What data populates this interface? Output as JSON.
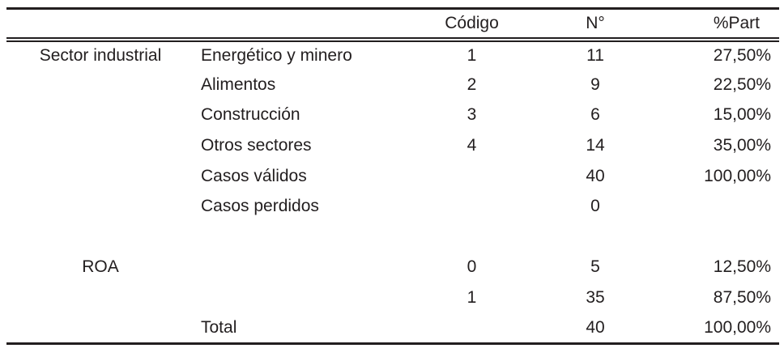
{
  "table": {
    "headers": {
      "group": "",
      "label": "",
      "codigo": "Código",
      "n": "N°",
      "part": "%Part"
    },
    "rows": [
      {
        "group": "Sector industrial",
        "label": "Energético y minero",
        "codigo": "1",
        "n": "11",
        "part": "27,50%"
      },
      {
        "group": "",
        "label": "Alimentos",
        "codigo": "2",
        "n": "9",
        "part": "22,50%"
      },
      {
        "group": "",
        "label": "Construcción",
        "codigo": "3",
        "n": "6",
        "part": "15,00%"
      },
      {
        "group": "",
        "label": "Otros sectores",
        "codigo": "4",
        "n": "14",
        "part": "35,00%"
      },
      {
        "group": "",
        "label": "Casos válidos",
        "codigo": "",
        "n": "40",
        "part": "100,00%"
      },
      {
        "group": "",
        "label": "Casos perdidos",
        "codigo": "",
        "n": "0",
        "part": ""
      },
      {
        "group": "",
        "label": "",
        "codigo": "",
        "n": "",
        "part": ""
      },
      {
        "group": "ROA",
        "label": "",
        "codigo": "0",
        "n": "5",
        "part": "12,50%"
      },
      {
        "group": "",
        "label": "",
        "codigo": "1",
        "n": "35",
        "part": "87,50%"
      },
      {
        "group": "",
        "label": "Total",
        "codigo": "",
        "n": "40",
        "part": "100,00%"
      }
    ],
    "colors": {
      "text": "#221e1f",
      "line": "#221e1f",
      "background": "#ffffff"
    }
  }
}
